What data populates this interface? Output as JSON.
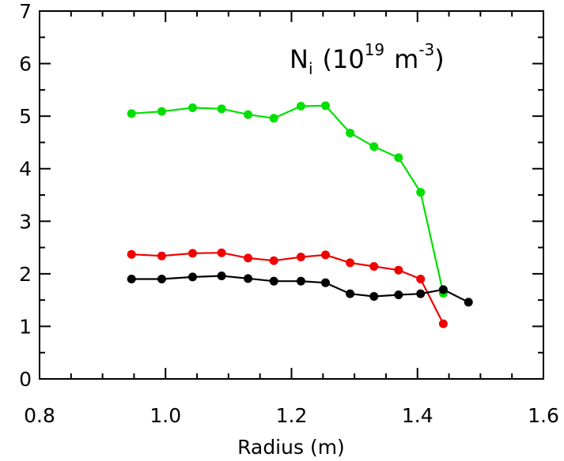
{
  "chart_data": {
    "type": "line",
    "title": "",
    "annotation": {
      "symbol": "N",
      "subscript": "i",
      "open": "(10",
      "exp1": "19",
      "unit": "m",
      "exp2": "-3",
      "close": ")"
    },
    "xlabel": "Radius (m)",
    "ylabel": "",
    "xlim": [
      0.8,
      1.6
    ],
    "ylim": [
      0,
      7
    ],
    "xticks": [
      0.8,
      1.0,
      1.2,
      1.4,
      1.6
    ],
    "xtick_labels": [
      "0.8",
      "1.0",
      "1.2",
      "1.4",
      "1.6"
    ],
    "yticks": [
      0,
      1,
      2,
      3,
      4,
      5,
      6,
      7
    ],
    "ytick_labels": [
      "0",
      "1",
      "2",
      "3",
      "4",
      "5",
      "6",
      "7"
    ],
    "grid": false,
    "series": [
      {
        "color": "#00e000",
        "x": [
          0.946,
          0.994,
          1.043,
          1.089,
          1.131,
          1.172,
          1.215,
          1.254,
          1.293,
          1.331,
          1.37,
          1.405,
          1.441
        ],
        "y": [
          5.05,
          5.09,
          5.16,
          5.14,
          5.03,
          4.96,
          5.19,
          5.2,
          4.68,
          4.42,
          4.21,
          3.55,
          1.63
        ]
      },
      {
        "color": "#f00000",
        "x": [
          0.946,
          0.994,
          1.043,
          1.089,
          1.131,
          1.172,
          1.215,
          1.254,
          1.293,
          1.331,
          1.37,
          1.405,
          1.441
        ],
        "y": [
          2.37,
          2.34,
          2.39,
          2.4,
          2.3,
          2.25,
          2.32,
          2.36,
          2.21,
          2.14,
          2.07,
          1.9,
          1.05
        ]
      },
      {
        "color": "#000000",
        "x": [
          0.946,
          0.994,
          1.043,
          1.089,
          1.131,
          1.172,
          1.215,
          1.254,
          1.293,
          1.331,
          1.37,
          1.405,
          1.441,
          1.481
        ],
        "y": [
          1.9,
          1.9,
          1.94,
          1.96,
          1.91,
          1.86,
          1.86,
          1.83,
          1.62,
          1.57,
          1.6,
          1.62,
          1.7,
          1.46
        ]
      }
    ]
  }
}
